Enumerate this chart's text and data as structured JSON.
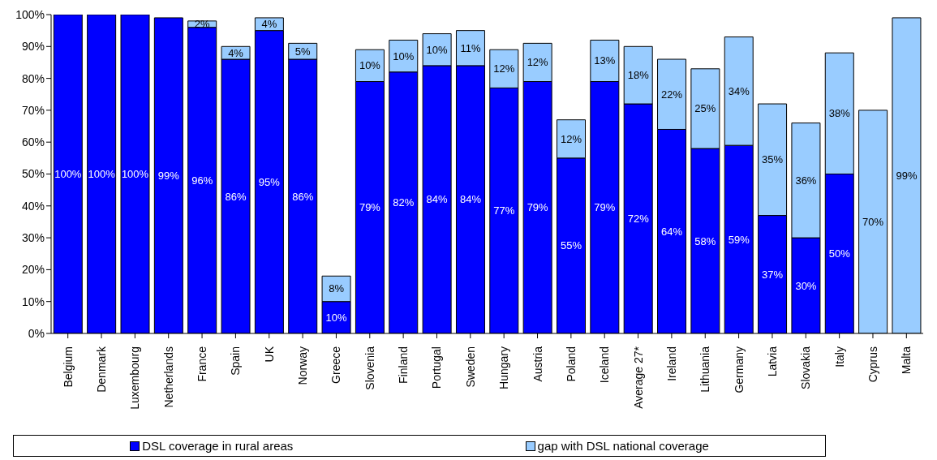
{
  "chart_data": {
    "type": "bar",
    "stacked": true,
    "categories": [
      "Belgium",
      "Denmark",
      "Luxembourg",
      "Netherlands",
      "France",
      "Spain",
      "UK",
      "Norway",
      "Greece",
      "Slovenia",
      "Finland",
      "Portugal",
      "Sweden",
      "Hungary",
      "Austria",
      "Poland",
      "Iceland",
      "Average 27*",
      "Ireland",
      "Lithuania",
      "Germany",
      "Latvia",
      "Slovakia",
      "Italy",
      "Cyprus",
      "Malta"
    ],
    "series": [
      {
        "name": "DSL coverage in rural areas",
        "color": "#0000ff",
        "values": [
          100,
          100,
          100,
          99,
          96,
          86,
          95,
          86,
          10,
          79,
          82,
          84,
          84,
          77,
          79,
          55,
          79,
          72,
          64,
          58,
          59,
          37,
          30,
          50,
          null,
          null
        ],
        "value_labels": [
          "100%",
          "100%",
          "100%",
          "99%",
          "96%",
          "86%",
          "95%",
          "86%",
          "10%",
          "79%",
          "82%",
          "84%",
          "84%",
          "77%",
          "79%",
          "55%",
          "79%",
          "72%",
          "64%",
          "58%",
          "59%",
          "37%",
          "30%",
          "50%",
          null,
          null
        ]
      },
      {
        "name": "gap with DSL national coverage",
        "color": "#99ccff",
        "values": [
          null,
          null,
          null,
          null,
          2,
          4,
          4,
          5,
          8,
          10,
          10,
          10,
          11,
          12,
          12,
          12,
          13,
          18,
          22,
          25,
          34,
          35,
          36,
          38,
          70,
          99
        ],
        "value_labels": [
          null,
          null,
          null,
          null,
          "2%",
          "4%",
          "4%",
          "5%",
          "8%",
          "10%",
          "10%",
          "10%",
          "11%",
          "12%",
          "12%",
          "12%",
          "13%",
          "18%",
          "22%",
          "25%",
          "34%",
          "35%",
          "36%",
          "38%",
          "70%",
          "99%"
        ]
      }
    ],
    "ylim": [
      0,
      100
    ],
    "yticks": [
      {
        "value": 0,
        "label": "0%"
      },
      {
        "value": 10,
        "label": "10%"
      },
      {
        "value": 20,
        "label": "20%"
      },
      {
        "value": 30,
        "label": "30%"
      },
      {
        "value": 40,
        "label": "40%"
      },
      {
        "value": 50,
        "label": "50%"
      },
      {
        "value": 60,
        "label": "60%"
      },
      {
        "value": 70,
        "label": "70%"
      },
      {
        "value": 80,
        "label": "80%"
      },
      {
        "value": 90,
        "label": "90%"
      },
      {
        "value": 100,
        "label": "100%"
      }
    ],
    "grid": false,
    "legend": "bottom"
  }
}
